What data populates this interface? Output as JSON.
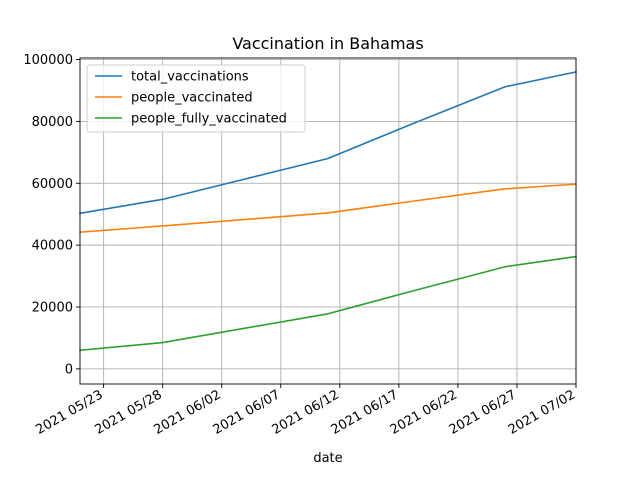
{
  "chart_data": {
    "type": "line",
    "title": "Vaccination in Bahamas",
    "xlabel": "date",
    "ylabel": "",
    "x_range": [
      "2021-05-21",
      "2021-07-02"
    ],
    "ylim": [
      -4900,
      100500
    ],
    "grid": true,
    "legend_placement": "top-left",
    "x_ticks": [
      {
        "date": "2021-05-23",
        "label": "2021 05/23"
      },
      {
        "date": "2021-05-28",
        "label": "2021 05/28"
      },
      {
        "date": "2021-06-02",
        "label": "2021 06/02"
      },
      {
        "date": "2021-06-07",
        "label": "2021 06/07"
      },
      {
        "date": "2021-06-12",
        "label": "2021 06/12"
      },
      {
        "date": "2021-06-17",
        "label": "2021 06/17"
      },
      {
        "date": "2021-06-22",
        "label": "2021 06/22"
      },
      {
        "date": "2021-06-27",
        "label": "2021 06/27"
      },
      {
        "date": "2021-07-02",
        "label": "2021 07/02"
      }
    ],
    "y_ticks": [
      {
        "value": 0,
        "label": "0"
      },
      {
        "value": 20000,
        "label": "20000"
      },
      {
        "value": 40000,
        "label": "40000"
      },
      {
        "value": 60000,
        "label": "60000"
      },
      {
        "value": 80000,
        "label": "80000"
      },
      {
        "value": 100000,
        "label": "100000"
      }
    ],
    "series": [
      {
        "name": "total_vaccinations",
        "color": "#1f77b4",
        "points": [
          {
            "x": "2021-05-21",
            "y": 50300
          },
          {
            "x": "2021-05-28",
            "y": 54800
          },
          {
            "x": "2021-06-11",
            "y": 68000
          },
          {
            "x": "2021-06-18",
            "y": 79000
          },
          {
            "x": "2021-06-26",
            "y": 91200
          },
          {
            "x": "2021-07-02",
            "y": 96000
          }
        ]
      },
      {
        "name": "people_vaccinated",
        "color": "#ff7f0e",
        "points": [
          {
            "x": "2021-05-21",
            "y": 44200
          },
          {
            "x": "2021-05-28",
            "y": 46200
          },
          {
            "x": "2021-06-11",
            "y": 50400
          },
          {
            "x": "2021-06-18",
            "y": 54100
          },
          {
            "x": "2021-06-26",
            "y": 58200
          },
          {
            "x": "2021-07-02",
            "y": 59700
          }
        ]
      },
      {
        "name": "people_fully_vaccinated",
        "color": "#2ca02c",
        "points": [
          {
            "x": "2021-05-21",
            "y": 6000
          },
          {
            "x": "2021-05-28",
            "y": 8500
          },
          {
            "x": "2021-06-11",
            "y": 17800
          },
          {
            "x": "2021-06-18",
            "y": 25000
          },
          {
            "x": "2021-06-26",
            "y": 33000
          },
          {
            "x": "2021-07-02",
            "y": 36300
          }
        ]
      }
    ]
  }
}
